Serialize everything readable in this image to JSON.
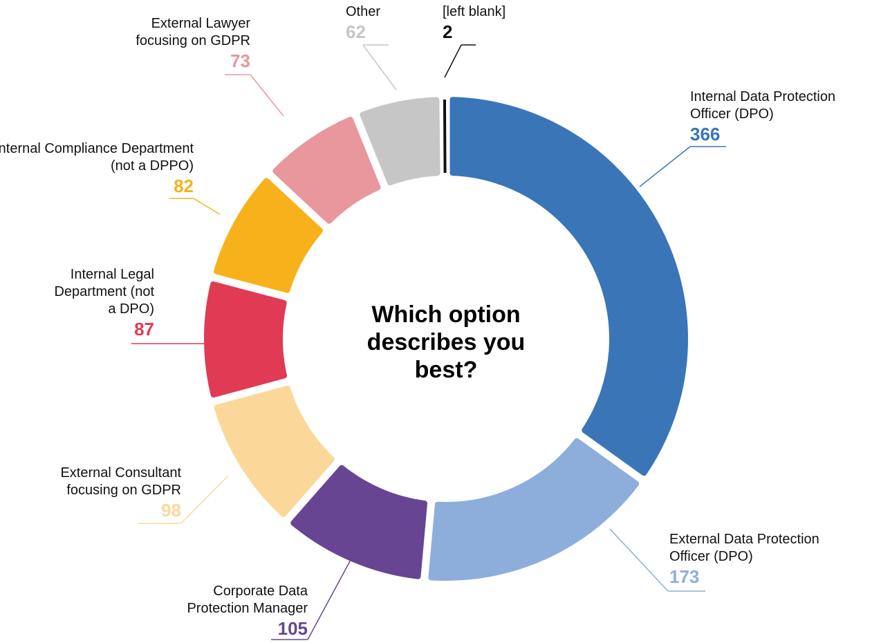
{
  "chart_data": {
    "type": "donut",
    "title": "Which option describes you best?",
    "categories": [
      "Internal Data Protection Officer (DPO)",
      "External Data Protection Officer (DPO)",
      "Corporate Data Protection Manager",
      "External Consultant focusing on GDPR",
      "Internal Legal Department (not a DPO)",
      "Internal Compliance Department (not a DPPO)",
      "External Lawyer focusing on GDPR",
      "Other",
      "[left blank]"
    ],
    "values": [
      366,
      173,
      105,
      98,
      87,
      82,
      73,
      62,
      2
    ],
    "colors": [
      "#3a75b8",
      "#8daedb",
      "#684593",
      "#fbd899",
      "#e03a55",
      "#f7b21b",
      "#e8979c",
      "#c6c6c6",
      "#111111"
    ]
  }
}
